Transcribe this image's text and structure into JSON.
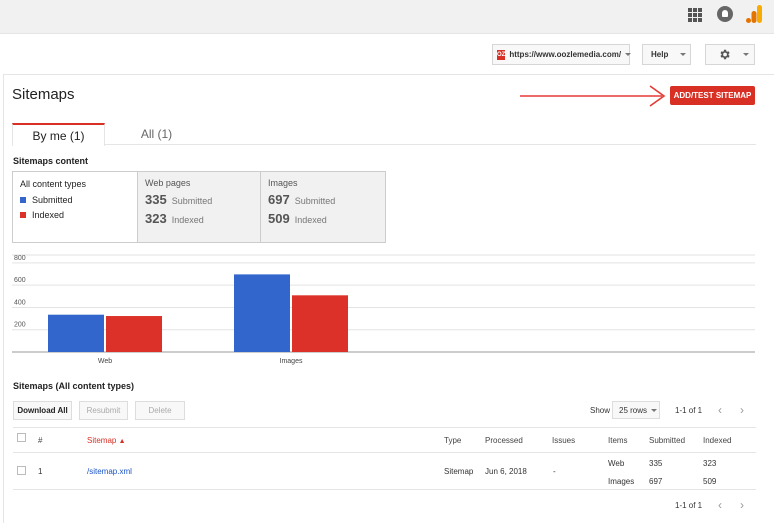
{
  "site": {
    "url": "https://www.oozlemedia.com/",
    "favicon_text": "OZ"
  },
  "toolbar": {
    "help_label": "Help"
  },
  "page": {
    "title": "Sitemaps",
    "add_button": "ADD/TEST SITEMAP"
  },
  "tabs": [
    {
      "label": "By me (1)"
    },
    {
      "label": "All (1)"
    }
  ],
  "content_section": {
    "title": "Sitemaps content",
    "all_types": {
      "label": "All content types",
      "legend": [
        {
          "label": "Submitted",
          "color": "#3366cc"
        },
        {
          "label": "Indexed",
          "color": "#dc3128"
        }
      ]
    },
    "cards": [
      {
        "title": "Web pages",
        "submitted": "335",
        "submitted_label": "Submitted",
        "indexed": "323",
        "indexed_label": "Indexed"
      },
      {
        "title": "Images",
        "submitted": "697",
        "submitted_label": "Submitted",
        "indexed": "509",
        "indexed_label": "Indexed"
      }
    ]
  },
  "chart_data": {
    "type": "bar",
    "categories": [
      "Web",
      "Images"
    ],
    "series": [
      {
        "name": "Submitted",
        "color": "#3366cc",
        "values": [
          335,
          697
        ]
      },
      {
        "name": "Indexed",
        "color": "#dc3128",
        "values": [
          323,
          509
        ]
      }
    ],
    "yticks": [
      "200",
      "400",
      "600",
      "800"
    ],
    "ylim": [
      0,
      880
    ],
    "grid": true
  },
  "table_section": {
    "title": "Sitemaps (All content types)",
    "buttons": {
      "download": "Download All",
      "resubmit": "Resubmit",
      "delete": "Delete"
    },
    "show_label": "Show",
    "rows_option": "25 rows",
    "pager_text": "1-1 of 1",
    "prev_icon": "chevron-left-icon",
    "next_icon": "chevron-right-icon",
    "prev_glyph": "‹",
    "next_glyph": "›",
    "columns": {
      "num": "#",
      "sitemap": "Sitemap",
      "type": "Type",
      "processed": "Processed",
      "issues": "Issues",
      "items": "Items",
      "submitted": "Submitted",
      "indexed": "Indexed"
    },
    "rows": [
      {
        "num": "1",
        "sitemap": "/sitemap.xml",
        "type": "Sitemap",
        "processed": "Jun 6, 2018",
        "issues": "-",
        "items": [
          {
            "item": "Web",
            "submitted": "335",
            "indexed": "323"
          },
          {
            "item": "Images",
            "submitted": "697",
            "indexed": "509"
          }
        ]
      }
    ]
  }
}
